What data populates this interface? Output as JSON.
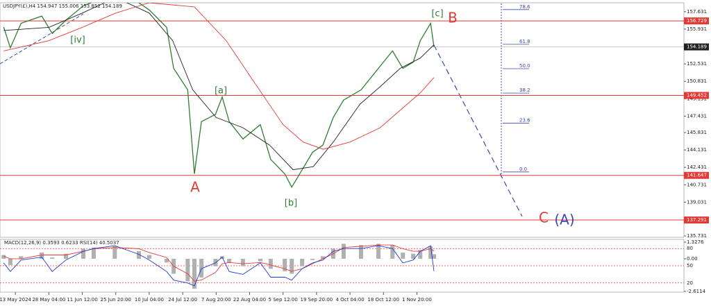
{
  "chart_data": [
    {
      "type": "line",
      "title": "USDJPY(£),H4  154.947 155.006 153.852 154.189",
      "categories": [
        "13 May 2024",
        "28 May 04:00",
        "11 Jun 12:00",
        "25 Jun 20:00",
        "10 Jul 04:00",
        "24 Jul 12:00",
        "7 Aug 20:00",
        "22 Aug 04:00",
        "5 Sep 12:00",
        "19 Sep 20:00",
        "4 Oct 04:00",
        "18 Oct 12:00",
        "1 Nov 20:00"
      ],
      "xlim": [
        -0.46,
        19.98
      ],
      "ylim": [
        135.6,
        158.5
      ],
      "yticks": [
        157.631,
        155.931,
        152.531,
        150.831,
        149.131,
        147.431,
        145.831,
        144.131,
        142.431,
        140.731,
        139.031,
        137.331,
        135.731
      ],
      "hlines": [
        156.729,
        149.452,
        141.647,
        137.291
      ],
      "hline_color": "#e53935",
      "last_price": 154.189,
      "fib_range": [
        141.98,
        162.15
      ],
      "fib_levels": [
        78.6,
        61.8,
        {
          "value": 50,
          "label": "50.0"
        },
        38.2,
        23.6,
        {
          "value": 0,
          "label": "0.0"
        }
      ],
      "fib_color": "#3949ab",
      "annotations": [
        "[iv]",
        "[a]",
        "[b]",
        "[c]",
        "B",
        "A",
        "C",
        "(A)"
      ],
      "series": [
        {
          "color": "#2e7d32",
          "x": [
            -0.35,
            -0.15,
            0.17,
            0.79,
            1.1,
            1.51,
            2.03,
            2.34,
            2.97,
            3.69,
            4.0,
            4.52,
            4.73,
            5.15,
            5.35,
            5.56,
            5.98,
            6.18,
            6.39,
            6.8,
            7.32,
            7.63,
            8.05,
            8.26,
            8.57,
            8.88,
            9.19,
            9.5,
            9.81,
            10.33,
            10.85,
            11.27,
            11.58,
            11.89,
            12.1,
            12.41,
            12.51
          ],
          "values": [
            156.13,
            154.1,
            156.5,
            157.2,
            155.5,
            156.8,
            158.2,
            158.6,
            160.5,
            158.5,
            157.8,
            156.1,
            152.1,
            150.0,
            141.8,
            146.9,
            147.6,
            149.3,
            146.9,
            145.2,
            146.6,
            143.2,
            141.8,
            140.5,
            142.2,
            143.9,
            144.6,
            147.3,
            149.0,
            150.0,
            152.1,
            153.8,
            152.1,
            152.7,
            154.8,
            156.5,
            154.189
          ]
        },
        {
          "color": "#222222",
          "x": [
            -0.35,
            1.0,
            2.0,
            3.0,
            4.0,
            4.7,
            5.3,
            6.0,
            6.8,
            7.6,
            8.3,
            8.9,
            9.5,
            10.3,
            10.9,
            11.5,
            12.1,
            12.51
          ],
          "values": [
            155.8,
            156.1,
            157.5,
            159.0,
            157.5,
            154.8,
            150.0,
            147.3,
            146.3,
            144.6,
            142.2,
            142.5,
            144.9,
            148.6,
            150.3,
            152.1,
            153.1,
            154.4
          ]
        },
        {
          "color": "#e53935",
          "x": [
            -0.35,
            1.0,
            2.0,
            3.0,
            4.0,
            5.35,
            6.3,
            7.0,
            8.0,
            8.6,
            9.2,
            10.0,
            10.9,
            11.6,
            12.1,
            12.51
          ],
          "values": [
            153.8,
            154.8,
            156.1,
            157.5,
            158.5,
            158.1,
            154.8,
            151.4,
            146.6,
            144.9,
            144.2,
            144.9,
            146.3,
            148.3,
            149.7,
            151.2
          ]
        }
      ]
    },
    {
      "type": "indicator",
      "title": "MACD(12,26,9) 0.3593 0.6233 RSI(14) 40.5037",
      "xlim": [
        -0.46,
        19.98
      ],
      "ylim": [
        4,
        96
      ],
      "yticks": [
        80,
        50,
        20
      ],
      "y2lim": [
        -2.67,
        1.55
      ],
      "y2ticks": [
        1.3276,
        {
          "value": 0,
          "label": "0.00"
        },
        -2.6114
      ],
      "x": [
        -0.35,
        -0.15,
        0.17,
        0.79,
        1.1,
        1.51,
        2.03,
        2.34,
        2.97,
        3.69,
        4.0,
        4.52,
        4.73,
        5.15,
        5.35,
        5.56,
        5.98,
        6.18,
        6.39,
        6.8,
        7.32,
        7.63,
        8.05,
        8.26,
        8.57,
        8.88,
        9.19,
        9.5,
        9.81,
        10.33,
        10.85,
        11.27,
        11.58,
        11.89,
        12.1,
        12.41,
        12.51
      ],
      "series": [
        {
          "type": "histogram",
          "axis": "y2",
          "color": "#b0b0b0",
          "values": [
            0.3,
            -0.5,
            0.2,
            0.5,
            0.1,
            0.4,
            0.8,
            0.9,
            1.0,
            0.6,
            0.3,
            -0.3,
            -1.2,
            -1.8,
            -2.4,
            -1.5,
            -0.6,
            0.2,
            -0.3,
            -0.6,
            -0.2,
            -0.8,
            -1.0,
            -1.2,
            -0.6,
            -0.1,
            0.2,
            0.8,
            1.2,
            1.1,
            1.2,
            1.1,
            0.5,
            0.4,
            0.7,
            1.0,
            0.3593
          ]
        },
        {
          "type": "line",
          "axis": "y2",
          "color": "#e53935",
          "values": [
            0.2,
            0,
            0,
            0.3,
            0.3,
            0.3,
            0.6,
            0.8,
            0.9,
            0.8,
            0.5,
            0.1,
            -0.6,
            -1.2,
            -1.8,
            -1.7,
            -1.1,
            -0.4,
            -0.3,
            -0.4,
            -0.3,
            -0.5,
            -0.8,
            -1.0,
            -0.8,
            -0.4,
            0,
            0.4,
            0.9,
            1.0,
            1.1,
            1.1,
            0.8,
            0.6,
            0.6,
            0.8,
            0.6233
          ]
        },
        {
          "type": "line",
          "color": "#1e3ad6",
          "values": [
            55,
            40,
            60,
            65,
            40,
            60,
            75,
            80,
            85,
            70,
            60,
            40,
            25,
            20,
            15,
            45,
            55,
            65,
            40,
            35,
            55,
            30,
            30,
            25,
            45,
            55,
            60,
            75,
            80,
            80,
            85,
            80,
            55,
            60,
            75,
            85,
            40.5037
          ]
        }
      ]
    }
  ]
}
